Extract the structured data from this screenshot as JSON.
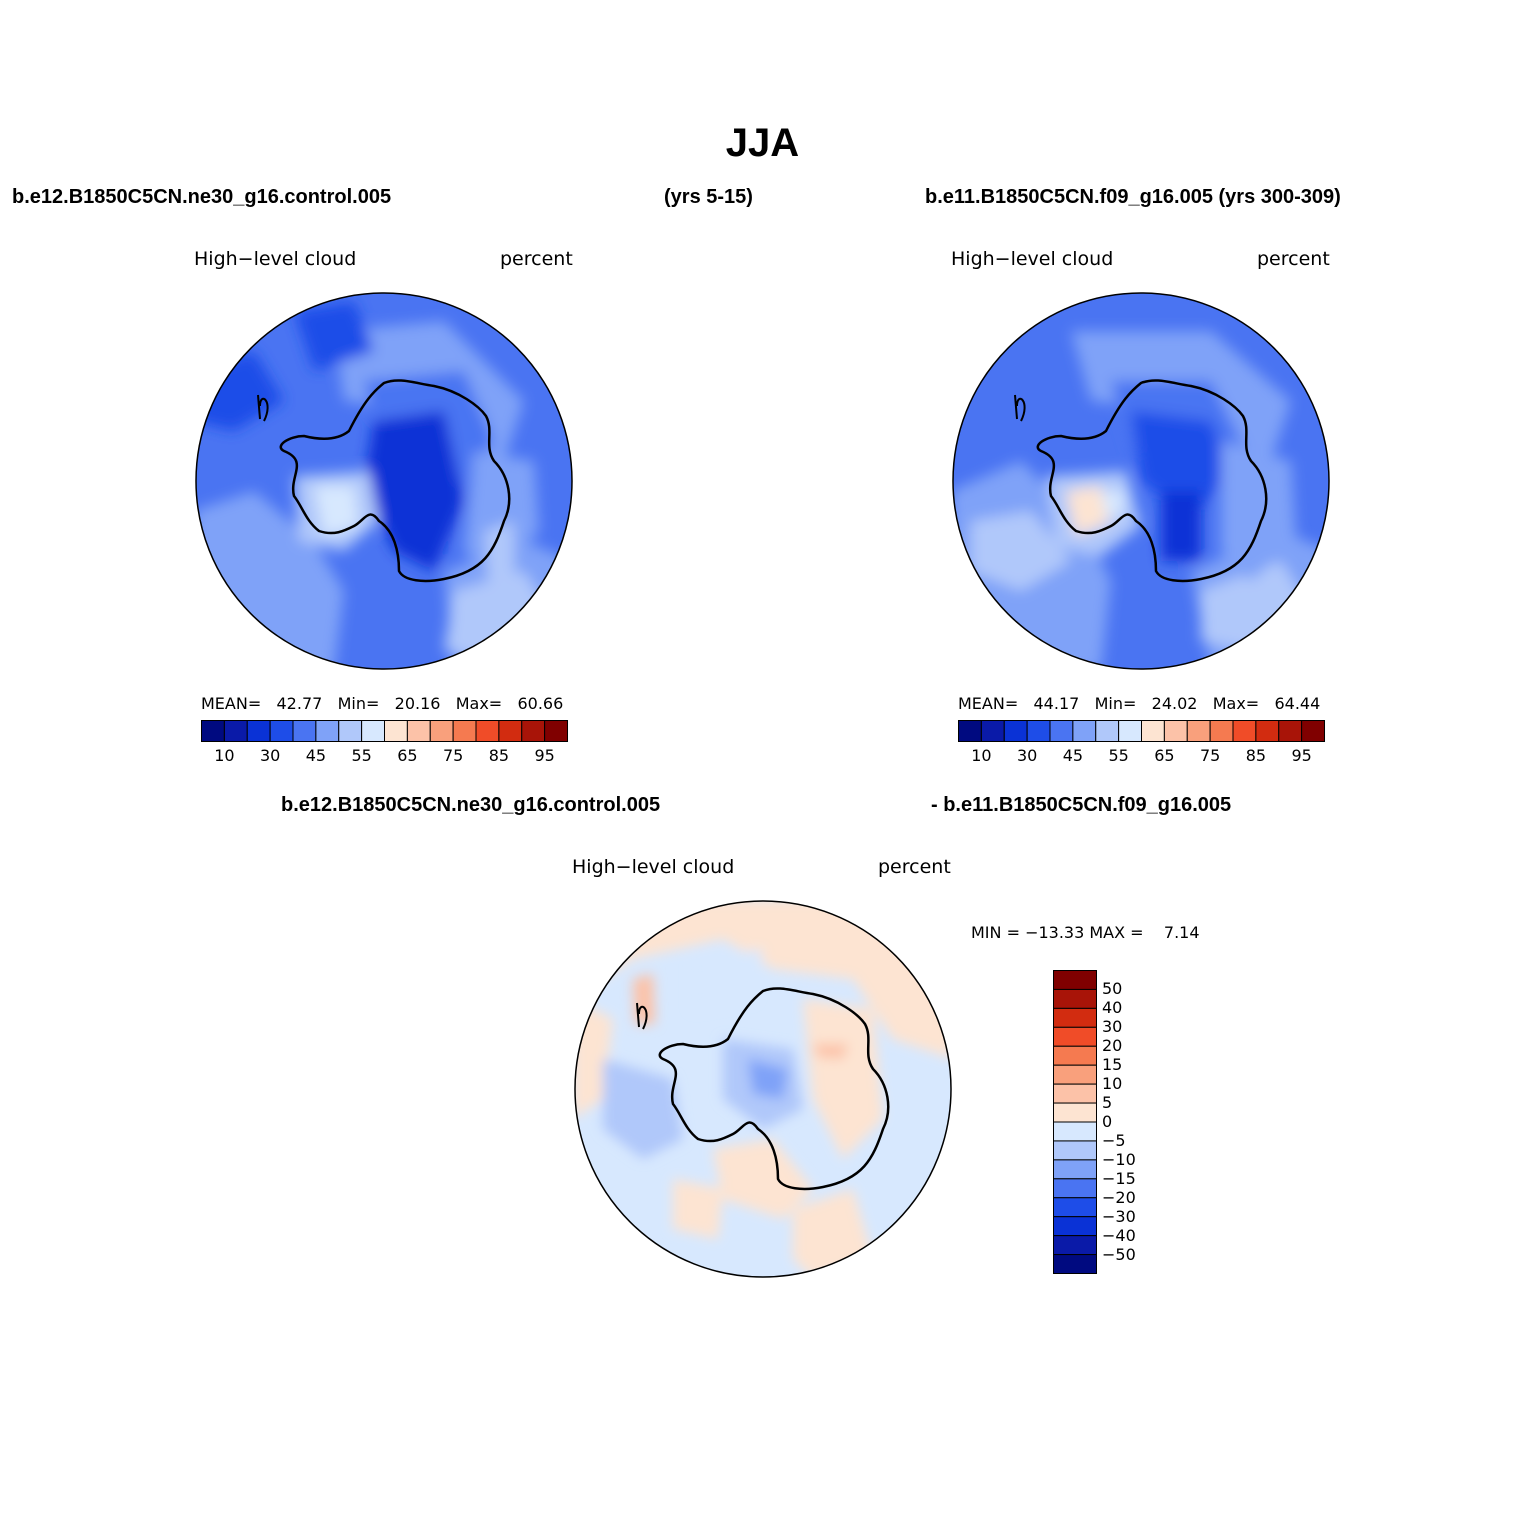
{
  "title": "JJA",
  "header": {
    "left_case": "b.e12.B1850C5CN.ne30_g16.control.005",
    "left_years": "(yrs 5-15)",
    "right_case": "b.e11.B1850C5CN.f09_g16.005 (yrs 300-309)"
  },
  "diff_header": {
    "left": "b.e12.B1850C5CN.ne30_g16.control.005",
    "right": "- b.e11.B1850C5CN.f09_g16.005"
  },
  "colors": {
    "seq": [
      "#000a80",
      "#0a1aa8",
      "#0a32d6",
      "#1e4de8",
      "#4a74f2",
      "#7fa2f8",
      "#b0c8fa",
      "#d7e8fe",
      "#fde4d2",
      "#fcc2a8",
      "#f9a07c",
      "#f57a50",
      "#f04c28",
      "#d22c10",
      "#a81408",
      "#800000"
    ],
    "diff": [
      "#000a80",
      "#0a1aa8",
      "#0a32d6",
      "#1e4de8",
      "#4a74f2",
      "#7fa2f8",
      "#b0c8fa",
      "#d7e8fe",
      "#fde4d2",
      "#fcc2a8",
      "#f9a07c",
      "#f57a50",
      "#f04c28",
      "#d22c10",
      "#a81408",
      "#800000"
    ]
  },
  "panel_a": {
    "var_label": "High−level cloud",
    "units": "percent",
    "mean_label": "MEAN=",
    "mean": "42.77",
    "min_label": "Min=",
    "min": "20.16",
    "max_label": "Max=",
    "max": "60.66",
    "colorbar_ticks": [
      "10",
      "30",
      "45",
      "55",
      "65",
      "75",
      "85",
      "95"
    ]
  },
  "panel_b": {
    "var_label": "High−level cloud",
    "units": "percent",
    "mean_label": "MEAN=",
    "mean": "44.17",
    "min_label": "Min=",
    "min": "24.02",
    "max_label": "Max=",
    "max": "64.44",
    "colorbar_ticks": [
      "10",
      "30",
      "45",
      "55",
      "65",
      "75",
      "85",
      "95"
    ]
  },
  "panel_diff": {
    "var_label": "High−level cloud",
    "units": "percent",
    "minmax": "MIN = −13.33 MAX =    7.14",
    "colorbar_ticks": [
      "50",
      "40",
      "30",
      "20",
      "15",
      "10",
      "5",
      "0",
      "−5",
      "−10",
      "−15",
      "−20",
      "−30",
      "−40",
      "−50"
    ]
  }
}
